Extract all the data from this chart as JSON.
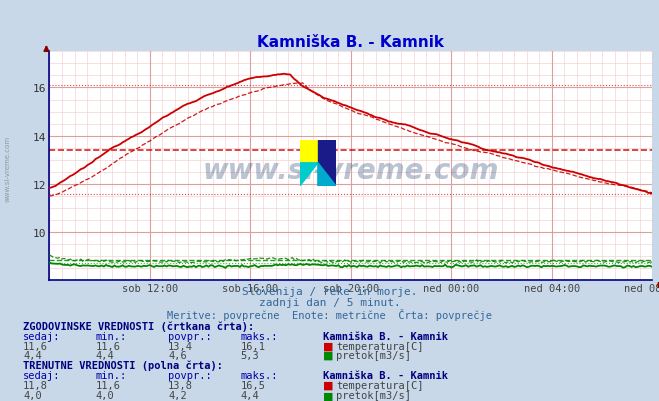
{
  "title": "Kamniška B. - Kamnik",
  "subtitle1": "Slovenija / reke in morje.",
  "subtitle2": "zadnji dan / 5 minut.",
  "subtitle3": "Meritve: povprečne  Enote: metrične  Črta: povprečje",
  "bg_color": "#c8d8e8",
  "plot_bg_color": "#ffffff",
  "x_labels": [
    "sob 12:00",
    "sob 16:00",
    "sob 20:00",
    "ned 00:00",
    "ned 04:00",
    "ned 08:00"
  ],
  "ylim": [
    8.0,
    17.5
  ],
  "yticks": [
    10,
    12,
    14,
    16
  ],
  "temp_color": "#cc0000",
  "flow_color": "#008800",
  "watermark_text": "www.si-vreme.com",
  "watermark_color": "#1a3a6a",
  "watermark_alpha": 0.3,
  "left_label": "www.si-vreme.com",
  "hist_label": "ZGODOVINSKE VREDNOSTI (črtkana črta):",
  "curr_label": "TRENUTNE VREDNOSTI (polna črta):",
  "col_headers": [
    "sedaj:",
    "min.:",
    "povpr.:",
    "maks.:"
  ],
  "station_label": "Kamniška B. - Kamnik",
  "hist_temp_vals": [
    "11,6",
    "11,6",
    "13,4",
    "16,1"
  ],
  "hist_flow_vals": [
    "4,4",
    "4,4",
    "4,6",
    "5,3"
  ],
  "curr_temp_vals": [
    "11,8",
    "11,6",
    "13,8",
    "16,5"
  ],
  "curr_flow_vals": [
    "4,0",
    "4,0",
    "4,2",
    "4,4"
  ],
  "temp_label": "temperatura[C]",
  "flow_label": "pretok[m3/s]",
  "n_points": 289,
  "temp_avg_line": 13.4,
  "temp_min_line": 11.6,
  "temp_max_line": 16.1,
  "flow_avg_line": 4.6,
  "flow_min_line": 4.4,
  "flow_max_line": 5.3,
  "flow_scale_min": 0.0,
  "flow_scale_max": 16.0,
  "figwidth": 6.59,
  "figheight": 4.02
}
